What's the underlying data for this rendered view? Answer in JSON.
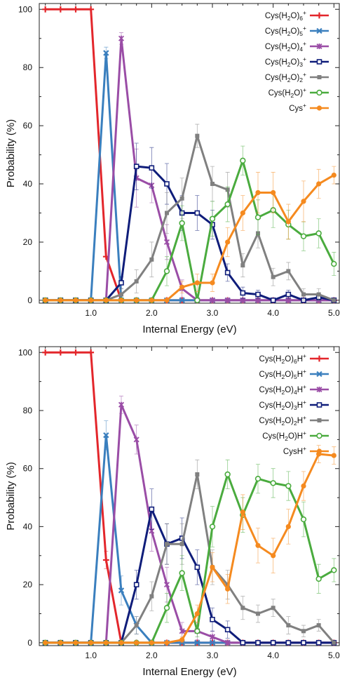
{
  "chart_data": [
    {
      "type": "line",
      "xlabel": "Internal Energy (eV)",
      "ylabel": "Probability (%)",
      "xlim": [
        0.15,
        5.1
      ],
      "ylim": [
        -1,
        102
      ],
      "xticks": [
        1.0,
        2.0,
        3.0,
        4.0,
        5.0
      ],
      "xtick_labels": [
        "1.0",
        "2.0",
        "3.0",
        "4.0",
        "5.0"
      ],
      "yticks": [
        0,
        20,
        40,
        60,
        80,
        100
      ],
      "ytick_labels": [
        "0",
        "20",
        "40",
        "60",
        "80",
        "100"
      ],
      "grid": false,
      "legend_position": "top-right",
      "x": [
        0.25,
        0.5,
        0.75,
        1.0,
        1.25,
        1.5,
        1.75,
        2.0,
        2.25,
        2.5,
        2.75,
        3.0,
        3.25,
        3.5,
        3.75,
        4.0,
        4.25,
        4.5,
        4.75,
        5.0
      ],
      "series": [
        {
          "name": "Cys(H2O)6+",
          "legend_base": "Cys(H",
          "legend_sub": "2",
          "legend_mid": "O)",
          "legend_sub2": "6",
          "legend_sup": "+",
          "color": "#e3262b",
          "marker": "plus",
          "values": [
            100,
            100,
            100,
            100,
            15,
            0,
            0,
            0,
            0,
            0,
            0,
            0,
            0,
            0,
            0,
            0,
            0,
            0,
            0,
            0
          ],
          "errors": [
            0,
            0,
            0,
            0,
            0,
            0,
            0,
            0,
            0,
            0,
            0,
            0,
            0,
            0,
            0,
            0,
            0,
            0,
            0,
            0
          ]
        },
        {
          "name": "Cys(H2O)5+",
          "legend_base": "Cys(H",
          "legend_sub": "2",
          "legend_mid": "O)",
          "legend_sub2": "5",
          "legend_sup": "+",
          "color": "#3a7fbe",
          "marker": "x",
          "values": [
            0,
            0,
            0,
            0,
            85,
            0,
            0,
            0,
            0,
            0,
            0,
            0,
            0,
            0,
            0,
            0,
            0,
            0,
            0,
            0
          ],
          "errors": [
            0,
            0,
            0,
            0,
            2,
            0,
            0,
            0,
            0,
            0,
            0,
            0,
            0,
            0,
            0,
            0,
            0,
            0,
            0,
            0
          ]
        },
        {
          "name": "Cys(H2O)4+",
          "legend_base": "Cys(H",
          "legend_sub": "2",
          "legend_mid": "O)",
          "legend_sub2": "4",
          "legend_sup": "+",
          "color": "#9a4da6",
          "marker": "asterisk",
          "values": [
            0,
            0,
            0,
            0,
            0,
            90,
            42,
            39.5,
            20,
            4,
            0,
            0,
            0,
            0,
            0,
            0,
            0,
            0,
            0,
            0
          ],
          "errors": [
            0,
            0,
            0,
            0,
            0,
            2,
            10,
            6,
            6,
            3,
            0,
            0,
            0,
            0,
            0,
            0,
            0,
            0,
            0,
            0
          ]
        },
        {
          "name": "Cys(H2O)3+",
          "legend_base": "Cys(H",
          "legend_sub": "2",
          "legend_mid": "O)",
          "legend_sub2": "3",
          "legend_sup": "+",
          "color": "#0f1d7a",
          "marker": "square-open",
          "values": [
            0,
            0,
            0,
            0,
            0,
            6,
            46,
            45.5,
            40,
            30,
            30,
            26,
            9.5,
            2.5,
            2,
            0,
            2,
            0,
            1,
            0
          ],
          "errors": [
            0,
            0,
            0,
            0,
            0,
            2,
            8,
            7,
            7,
            6,
            6,
            5,
            3,
            2,
            1.5,
            0,
            1.5,
            0,
            1,
            0
          ]
        },
        {
          "name": "Cys(H2O)2+",
          "legend_base": "Cys(H",
          "legend_sub": "2",
          "legend_mid": "O)",
          "legend_sub2": "2",
          "legend_sup": "+",
          "color": "#808080",
          "marker": "square",
          "values": [
            0,
            0,
            0,
            0,
            0,
            2,
            6.5,
            14,
            30,
            35,
            56.5,
            40,
            38,
            12,
            23,
            8,
            10,
            2,
            2,
            0
          ],
          "errors": [
            0,
            0,
            0,
            0,
            0,
            2,
            4,
            6,
            7,
            7,
            4,
            6,
            6,
            4,
            5,
            3,
            3,
            2,
            2,
            0
          ]
        },
        {
          "name": "Cys(H2O)+",
          "legend_base": "Cys(H",
          "legend_sub": "2",
          "legend_mid": "O)",
          "legend_sub2": "",
          "legend_sup": "+",
          "color": "#4aab3e",
          "marker": "circle-open",
          "values": [
            0,
            0,
            0,
            0,
            0,
            0,
            0,
            0,
            10,
            26.5,
            0,
            28,
            33,
            48,
            28.5,
            31,
            26,
            22,
            23,
            12.5
          ],
          "errors": [
            0,
            0,
            0,
            0,
            0,
            0,
            0,
            0,
            5,
            6,
            0,
            6,
            6,
            5,
            6,
            6,
            5,
            5,
            5,
            4
          ]
        },
        {
          "name": "Cys+",
          "legend_base": "Cys",
          "legend_sub": "",
          "legend_mid": "",
          "legend_sub2": "",
          "legend_sup": "+",
          "color": "#f58a1f",
          "marker": "circle",
          "values": [
            0,
            0,
            0,
            0,
            0,
            0,
            0,
            0,
            0,
            4.5,
            6,
            6,
            20,
            30,
            37,
            37,
            27,
            34,
            40,
            43
          ],
          "errors": [
            0,
            0,
            0,
            0,
            0,
            0,
            0,
            0,
            0,
            2,
            3,
            3,
            5,
            6,
            7,
            7,
            6,
            7,
            5,
            3
          ]
        }
      ]
    },
    {
      "type": "line",
      "xlabel": "Internal Energy (eV)",
      "ylabel": "Probability (%)",
      "xlim": [
        0.15,
        5.1
      ],
      "ylim": [
        -1,
        102
      ],
      "xticks": [
        1.0,
        2.0,
        3.0,
        4.0,
        5.0
      ],
      "xtick_labels": [
        "1.0",
        "2.0",
        "3.0",
        "4.0",
        "5.0"
      ],
      "yticks": [
        0,
        20,
        40,
        60,
        80,
        100
      ],
      "ytick_labels": [
        "0",
        "20",
        "40",
        "60",
        "80",
        "100"
      ],
      "grid": false,
      "legend_position": "top-right",
      "x": [
        0.25,
        0.5,
        0.75,
        1.0,
        1.25,
        1.5,
        1.75,
        2.0,
        2.25,
        2.5,
        2.75,
        3.0,
        3.25,
        3.5,
        3.75,
        4.0,
        4.25,
        4.5,
        4.75,
        5.0
      ],
      "series": [
        {
          "name": "Cys(H2O)6H+",
          "legend_base": "Cys(H",
          "legend_sub": "2",
          "legend_mid": "O)",
          "legend_sub2": "6",
          "legend_tail": "H",
          "legend_sup": "+",
          "color": "#e3262b",
          "marker": "plus",
          "values": [
            100,
            100,
            100,
            100,
            28.5,
            0,
            0,
            0,
            0,
            0,
            0,
            0,
            0,
            0,
            0,
            0,
            0,
            0,
            0,
            0
          ],
          "errors": [
            0,
            0,
            0,
            0,
            3,
            0,
            0,
            0,
            0,
            0,
            0,
            0,
            0,
            0,
            0,
            0,
            0,
            0,
            0,
            0
          ]
        },
        {
          "name": "Cys(H2O)5H+",
          "legend_base": "Cys(H",
          "legend_sub": "2",
          "legend_mid": "O)",
          "legend_sub2": "5",
          "legend_tail": "H",
          "legend_sup": "+",
          "color": "#3a7fbe",
          "marker": "x",
          "values": [
            0,
            0,
            0,
            0,
            71.5,
            18,
            6,
            0,
            0,
            0,
            0,
            0,
            0,
            0,
            0,
            0,
            0,
            0,
            0,
            0
          ],
          "errors": [
            0,
            0,
            0,
            0,
            5,
            5,
            3,
            0,
            0,
            0,
            0,
            0,
            0,
            0,
            0,
            0,
            0,
            0,
            0,
            0
          ]
        },
        {
          "name": "Cys(H2O)4H+",
          "legend_base": "Cys(H",
          "legend_sub": "2",
          "legend_mid": "O)",
          "legend_sub2": "4",
          "legend_tail": "H",
          "legend_sup": "+",
          "color": "#9a4da6",
          "marker": "asterisk",
          "values": [
            0,
            0,
            0,
            0,
            0,
            82,
            70,
            38.5,
            20,
            4,
            4,
            2,
            0,
            0,
            0,
            0,
            0,
            0,
            0,
            0
          ],
          "errors": [
            0,
            0,
            0,
            0,
            0,
            3,
            5,
            7,
            6,
            3,
            3,
            2,
            0,
            0,
            0,
            0,
            0,
            0,
            0,
            0
          ]
        },
        {
          "name": "Cys(H2O)3H+",
          "legend_base": "Cys(H",
          "legend_sub": "2",
          "legend_mid": "O)",
          "legend_sub2": "3",
          "legend_tail": "H",
          "legend_sup": "+",
          "color": "#0f1d7a",
          "marker": "square-open",
          "values": [
            0,
            0,
            0,
            0,
            0,
            0,
            20,
            46,
            34,
            36,
            26,
            8,
            4.5,
            0,
            0,
            0,
            0,
            0,
            0,
            0
          ],
          "errors": [
            0,
            0,
            0,
            0,
            0,
            0,
            5,
            7,
            7,
            7,
            6,
            4,
            3,
            0,
            0,
            0,
            0,
            0,
            0,
            0
          ]
        },
        {
          "name": "Cys(H2O)2H+",
          "legend_base": "Cys(H",
          "legend_sub": "2",
          "legend_mid": "O)",
          "legend_sub2": "2",
          "legend_tail": "H",
          "legend_sup": "+",
          "color": "#808080",
          "marker": "square",
          "values": [
            0,
            0,
            0,
            0,
            0,
            0,
            6,
            16,
            34,
            34,
            58,
            26,
            20,
            12,
            10,
            12,
            6,
            4,
            6,
            0
          ],
          "errors": [
            0,
            0,
            0,
            0,
            0,
            0,
            3,
            5,
            7,
            7,
            5,
            6,
            5,
            4,
            3,
            3,
            3,
            2,
            2,
            0
          ]
        },
        {
          "name": "Cys(H2O)H+",
          "legend_base": "Cys(H",
          "legend_sub": "2",
          "legend_mid": "O)",
          "legend_sub2": "",
          "legend_tail": "H",
          "legend_sup": "+",
          "color": "#4aab3e",
          "marker": "circle-open",
          "values": [
            0,
            0,
            0,
            0,
            0,
            0,
            0,
            0,
            12,
            24,
            4,
            40,
            58,
            44,
            56.5,
            55,
            54,
            42.5,
            22,
            25
          ],
          "errors": [
            0,
            0,
            0,
            0,
            0,
            0,
            0,
            0,
            5,
            6,
            2,
            7,
            5,
            6,
            5,
            5,
            5,
            6,
            5,
            4
          ]
        },
        {
          "name": "CysH+",
          "legend_base": "CysH",
          "legend_sub": "",
          "legend_mid": "",
          "legend_sub2": "",
          "legend_tail": "",
          "legend_sup": "+",
          "color": "#f58a1f",
          "marker": "circle",
          "values": [
            0,
            0,
            0,
            0,
            0,
            0,
            0,
            0,
            0,
            1,
            10,
            26,
            18.5,
            45,
            33.5,
            30,
            40,
            54,
            65,
            64.5
          ],
          "errors": [
            0,
            0,
            0,
            0,
            0,
            0,
            0,
            0,
            0,
            1,
            3,
            5,
            5,
            6,
            6,
            6,
            6,
            5,
            3,
            3
          ]
        }
      ]
    }
  ]
}
